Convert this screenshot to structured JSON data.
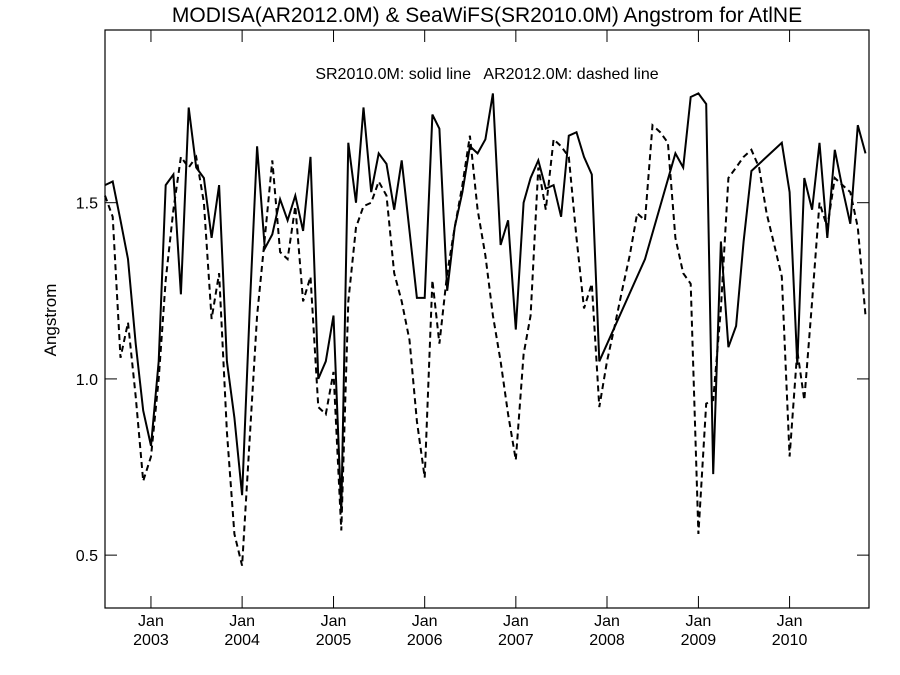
{
  "chart_data": {
    "type": "line",
    "title": "MODISA(AR2012.0M) & SeaWiFS(SR2010.0M)  Angstrom for AtlNE",
    "annotation": "SR2010.0M: solid line   AR2012.0M: dashed line",
    "xlabel": "",
    "ylabel": "Angstrom",
    "xlim": [
      "2002-07-01",
      "2010-11-15"
    ],
    "ylim": [
      0.35,
      1.99
    ],
    "y_ticks": [
      {
        "value": 0.5,
        "label": "0.5"
      },
      {
        "value": 1.0,
        "label": "1.0"
      },
      {
        "value": 1.5,
        "label": "1.5"
      }
    ],
    "x_ticks": [
      {
        "date": "2003-01-01",
        "label": "Jan",
        "year": "2003"
      },
      {
        "date": "2004-01-01",
        "label": "Jan",
        "year": "2004"
      },
      {
        "date": "2005-01-01",
        "label": "Jan",
        "year": "2005"
      },
      {
        "date": "2006-01-01",
        "label": "Jan",
        "year": "2006"
      },
      {
        "date": "2007-01-01",
        "label": "Jan",
        "year": "2007"
      },
      {
        "date": "2008-01-01",
        "label": "Jan",
        "year": "2008"
      },
      {
        "date": "2009-01-01",
        "label": "Jan",
        "year": "2009"
      },
      {
        "date": "2010-01-01",
        "label": "Jan",
        "year": "2010"
      }
    ],
    "series": [
      {
        "name": "SR2010.0M",
        "style": "solid",
        "x": [
          "2002-07-01",
          "2002-08-01",
          "2002-09-01",
          "2002-10-01",
          "2002-11-01",
          "2002-12-01",
          "2003-01-01",
          "2003-02-01",
          "2003-03-01",
          "2003-04-01",
          "2003-05-01",
          "2003-06-01",
          "2003-07-01",
          "2003-08-01",
          "2003-09-01",
          "2003-10-01",
          "2003-11-01",
          "2003-12-01",
          "2004-01-01",
          "2004-02-01",
          "2004-03-01",
          "2004-04-01",
          "2004-05-01",
          "2004-06-01",
          "2004-07-01",
          "2004-08-01",
          "2004-09-01",
          "2004-10-01",
          "2004-11-01",
          "2004-12-01",
          "2005-01-01",
          "2005-02-01",
          "2005-03-01",
          "2005-04-01",
          "2005-05-01",
          "2005-06-01",
          "2005-07-01",
          "2005-08-01",
          "2005-09-01",
          "2005-10-01",
          "2005-11-01",
          "2005-12-01",
          "2006-01-01",
          "2006-02-01",
          "2006-03-01",
          "2006-04-01",
          "2006-05-01",
          "2006-06-01",
          "2006-07-01",
          "2006-08-01",
          "2006-09-01",
          "2006-10-01",
          "2006-11-01",
          "2006-12-01",
          "2007-01-01",
          "2007-02-01",
          "2007-03-01",
          "2007-04-01",
          "2007-05-01",
          "2007-06-01",
          "2007-07-01",
          "2007-08-01",
          "2007-09-01",
          "2007-10-01",
          "2007-11-01",
          "2007-12-01",
          "2008-06-01",
          "2008-10-01",
          "2008-11-01",
          "2008-12-01",
          "2009-01-01",
          "2009-02-01",
          "2009-03-01",
          "2009-04-01",
          "2009-05-01",
          "2009-06-01",
          "2009-07-01",
          "2009-08-01",
          "2009-12-01",
          "2010-01-01",
          "2010-02-01",
          "2010-03-01",
          "2010-04-01",
          "2010-05-01",
          "2010-06-01",
          "2010-07-01",
          "2010-08-01",
          "2010-09-01",
          "2010-10-01",
          "2010-11-01"
        ],
        "y": [
          1.55,
          1.56,
          1.45,
          1.34,
          1.1,
          0.91,
          0.81,
          1.05,
          1.55,
          1.58,
          1.24,
          1.77,
          1.6,
          1.57,
          1.4,
          1.55,
          1.05,
          0.89,
          0.67,
          1.21,
          1.66,
          1.37,
          1.41,
          1.51,
          1.45,
          1.52,
          1.42,
          1.63,
          1.0,
          1.05,
          1.18,
          0.62,
          1.67,
          1.5,
          1.77,
          1.53,
          1.64,
          1.61,
          1.48,
          1.62,
          1.42,
          1.23,
          1.23,
          1.75,
          1.71,
          1.25,
          1.43,
          1.53,
          1.66,
          1.64,
          1.68,
          1.81,
          1.38,
          1.45,
          1.14,
          1.5,
          1.57,
          1.62,
          1.54,
          1.55,
          1.46,
          1.69,
          1.7,
          1.63,
          1.58,
          1.05,
          1.34,
          1.64,
          1.6,
          1.8,
          1.81,
          1.78,
          0.73,
          1.39,
          1.09,
          1.15,
          1.39,
          1.59,
          1.67,
          1.53,
          1.04,
          1.57,
          1.48,
          1.67,
          1.4,
          1.65,
          1.54,
          1.44,
          1.72,
          1.64
        ]
      },
      {
        "name": "AR2012.0M",
        "style": "dashed",
        "x": [
          "2002-07-01",
          "2002-08-01",
          "2002-09-01",
          "2002-10-01",
          "2002-11-01",
          "2002-12-01",
          "2003-01-01",
          "2003-02-01",
          "2003-03-01",
          "2003-04-01",
          "2003-05-01",
          "2003-06-01",
          "2003-07-01",
          "2003-08-01",
          "2003-09-01",
          "2003-10-01",
          "2003-11-01",
          "2003-12-01",
          "2004-01-01",
          "2004-02-01",
          "2004-03-01",
          "2004-04-01",
          "2004-05-01",
          "2004-06-01",
          "2004-07-01",
          "2004-08-01",
          "2004-09-01",
          "2004-10-01",
          "2004-11-01",
          "2004-12-01",
          "2005-01-01",
          "2005-02-01",
          "2005-03-01",
          "2005-04-01",
          "2005-05-01",
          "2005-06-01",
          "2005-07-01",
          "2005-08-01",
          "2005-09-01",
          "2005-10-01",
          "2005-11-01",
          "2005-12-01",
          "2006-01-01",
          "2006-02-01",
          "2006-03-01",
          "2006-04-01",
          "2006-05-01",
          "2006-06-01",
          "2006-07-01",
          "2006-08-01",
          "2006-09-01",
          "2006-10-01",
          "2006-11-01",
          "2006-12-01",
          "2007-01-01",
          "2007-02-01",
          "2007-03-01",
          "2007-04-01",
          "2007-05-01",
          "2007-06-01",
          "2007-07-01",
          "2007-08-01",
          "2007-09-01",
          "2007-10-01",
          "2007-11-01",
          "2007-12-01",
          "2008-01-01",
          "2008-02-01",
          "2008-03-01",
          "2008-04-01",
          "2008-05-01",
          "2008-06-01",
          "2008-07-01",
          "2008-08-01",
          "2008-09-01",
          "2008-10-01",
          "2008-11-01",
          "2008-12-01",
          "2009-01-01",
          "2009-02-01",
          "2009-03-01",
          "2009-04-01",
          "2009-05-01",
          "2009-06-01",
          "2009-07-01",
          "2009-08-01",
          "2009-09-01",
          "2009-10-01",
          "2009-11-01",
          "2009-12-01",
          "2010-01-01",
          "2010-02-01",
          "2010-03-01",
          "2010-04-01",
          "2010-05-01",
          "2010-06-01",
          "2010-07-01",
          "2010-08-01",
          "2010-09-01",
          "2010-10-01",
          "2010-11-01"
        ],
        "y": [
          1.52,
          1.46,
          1.06,
          1.16,
          0.95,
          0.71,
          0.78,
          1.0,
          1.28,
          1.48,
          1.63,
          1.6,
          1.63,
          1.5,
          1.17,
          1.3,
          0.85,
          0.56,
          0.47,
          0.84,
          1.18,
          1.4,
          1.62,
          1.36,
          1.34,
          1.49,
          1.22,
          1.29,
          0.92,
          0.9,
          1.02,
          0.57,
          1.22,
          1.43,
          1.49,
          1.5,
          1.56,
          1.52,
          1.3,
          1.22,
          1.11,
          0.88,
          0.72,
          1.28,
          1.1,
          1.3,
          1.43,
          1.55,
          1.69,
          1.48,
          1.35,
          1.18,
          1.05,
          0.9,
          0.77,
          1.07,
          1.18,
          1.6,
          1.48,
          1.68,
          1.66,
          1.63,
          1.4,
          1.2,
          1.27,
          0.92,
          1.05,
          1.15,
          1.25,
          1.35,
          1.47,
          1.45,
          1.72,
          1.7,
          1.67,
          1.4,
          1.3,
          1.27,
          0.56,
          0.93,
          0.94,
          1.2,
          1.57,
          1.6,
          1.63,
          1.65,
          1.6,
          1.47,
          1.38,
          1.29,
          0.78,
          1.08,
          0.94,
          1.22,
          1.5,
          1.43,
          1.57,
          1.55,
          1.53,
          1.43,
          1.18
        ]
      }
    ]
  }
}
